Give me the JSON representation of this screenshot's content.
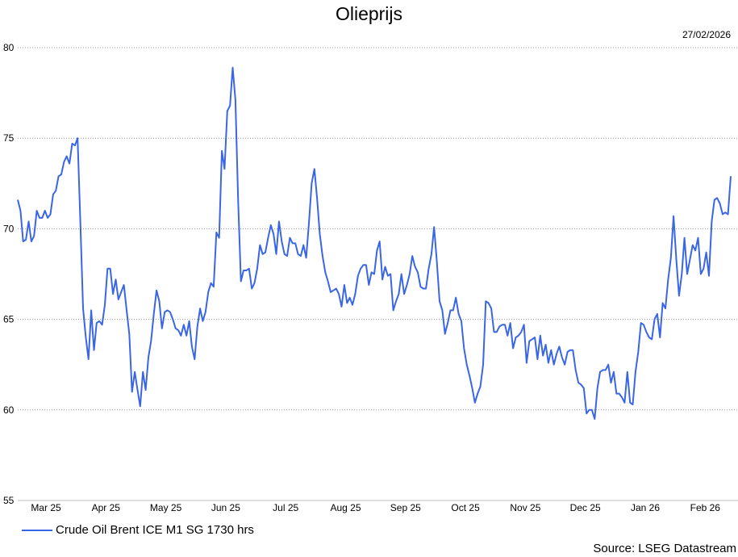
{
  "chart_data": {
    "type": "line",
    "title": "Olieprijs",
    "date_label": "27/02/2026",
    "xlabel": "",
    "ylabel": "",
    "ylim": [
      55,
      80
    ],
    "yticks": [
      55,
      60,
      65,
      70,
      75,
      80
    ],
    "grid": true,
    "x_tick_labels": [
      "Mar 25",
      "Apr 25",
      "May 25",
      "Jun 25",
      "Jul 25",
      "Aug 25",
      "Sep 25",
      "Oct 25",
      "Nov 25",
      "Dec 25",
      "Jan 26",
      "Feb 26"
    ],
    "legend_position": "bottom-left",
    "source": "Source: LSEG Datastream",
    "line_color": "#3a66e6",
    "series": [
      {
        "name": "Crude Oil Brent ICE M1 SG 1730 hrs",
        "values": [
          71.6,
          71.0,
          69.3,
          69.4,
          70.4,
          69.3,
          69.6,
          71.0,
          70.6,
          70.6,
          71.0,
          70.6,
          70.8,
          71.9,
          72.1,
          72.9,
          73.0,
          73.7,
          74.0,
          73.6,
          74.7,
          74.6,
          75.0,
          70.4,
          65.6,
          64.0,
          62.8,
          65.5,
          63.3,
          64.8,
          64.9,
          64.7,
          65.8,
          67.8,
          67.8,
          66.4,
          67.2,
          66.1,
          66.5,
          66.9,
          65.5,
          64.2,
          61.0,
          62.1,
          61.1,
          60.2,
          62.1,
          61.1,
          62.9,
          63.8,
          65.3,
          66.6,
          66.0,
          64.5,
          65.4,
          65.5,
          65.4,
          65.0,
          64.5,
          64.4,
          64.1,
          64.7,
          64.1,
          64.9,
          63.5,
          62.8,
          64.6,
          65.6,
          64.9,
          65.4,
          66.5,
          67.0,
          66.8,
          69.8,
          69.5,
          74.3,
          73.3,
          76.5,
          76.8,
          78.9,
          77.1,
          71.5,
          67.1,
          67.7,
          67.7,
          67.8,
          66.7,
          67.0,
          67.8,
          69.1,
          68.6,
          68.7,
          69.5,
          70.2,
          69.7,
          68.6,
          70.4,
          69.3,
          68.6,
          68.5,
          69.5,
          69.2,
          69.2,
          68.6,
          68.5,
          69.1,
          68.4,
          70.3,
          72.5,
          73.3,
          71.7,
          69.7,
          68.5,
          67.6,
          67.1,
          66.5,
          66.6,
          66.7,
          66.4,
          65.7,
          66.9,
          65.9,
          66.2,
          65.8,
          66.4,
          67.4,
          67.8,
          68.0,
          68.0,
          66.9,
          67.6,
          67.5,
          68.8,
          69.3,
          67.2,
          67.9,
          67.4,
          67.5,
          65.5,
          66.0,
          66.4,
          67.5,
          66.4,
          66.9,
          67.5,
          68.5,
          67.9,
          67.6,
          66.8,
          66.7,
          66.7,
          67.8,
          68.6,
          70.1,
          68.2,
          66.0,
          65.5,
          64.2,
          64.8,
          65.5,
          65.5,
          66.2,
          65.3,
          64.9,
          63.4,
          62.5,
          61.9,
          61.2,
          60.4,
          60.9,
          61.3,
          62.5,
          66.0,
          65.9,
          65.6,
          64.3,
          64.3,
          64.6,
          64.7,
          64.7,
          64.1,
          64.8,
          63.4,
          64.0,
          64.1,
          64.3,
          64.7,
          62.6,
          63.8,
          63.9,
          64.0,
          62.8,
          64.1,
          63.0,
          63.6,
          62.6,
          63.3,
          62.5,
          63.1,
          63.5,
          62.9,
          62.5,
          63.2,
          63.3,
          63.3,
          62.2,
          61.5,
          61.4,
          61.2,
          59.8,
          60.0,
          60.0,
          59.5,
          61.2,
          62.1,
          62.2,
          62.2,
          62.5,
          61.5,
          62.1,
          60.9,
          60.9,
          60.7,
          60.4,
          62.1,
          60.4,
          60.3,
          62.1,
          63.2,
          64.8,
          64.7,
          64.3,
          64.0,
          63.9,
          65.0,
          65.3,
          64.0,
          65.9,
          65.6,
          67.2,
          68.4,
          70.7,
          68.3,
          66.3,
          67.5,
          69.5,
          67.5,
          68.3,
          69.1,
          68.8,
          69.5,
          67.5,
          67.8,
          68.7,
          67.4,
          70.4,
          71.6,
          71.7,
          71.4,
          70.8,
          70.9,
          70.8,
          72.9
        ]
      }
    ]
  }
}
